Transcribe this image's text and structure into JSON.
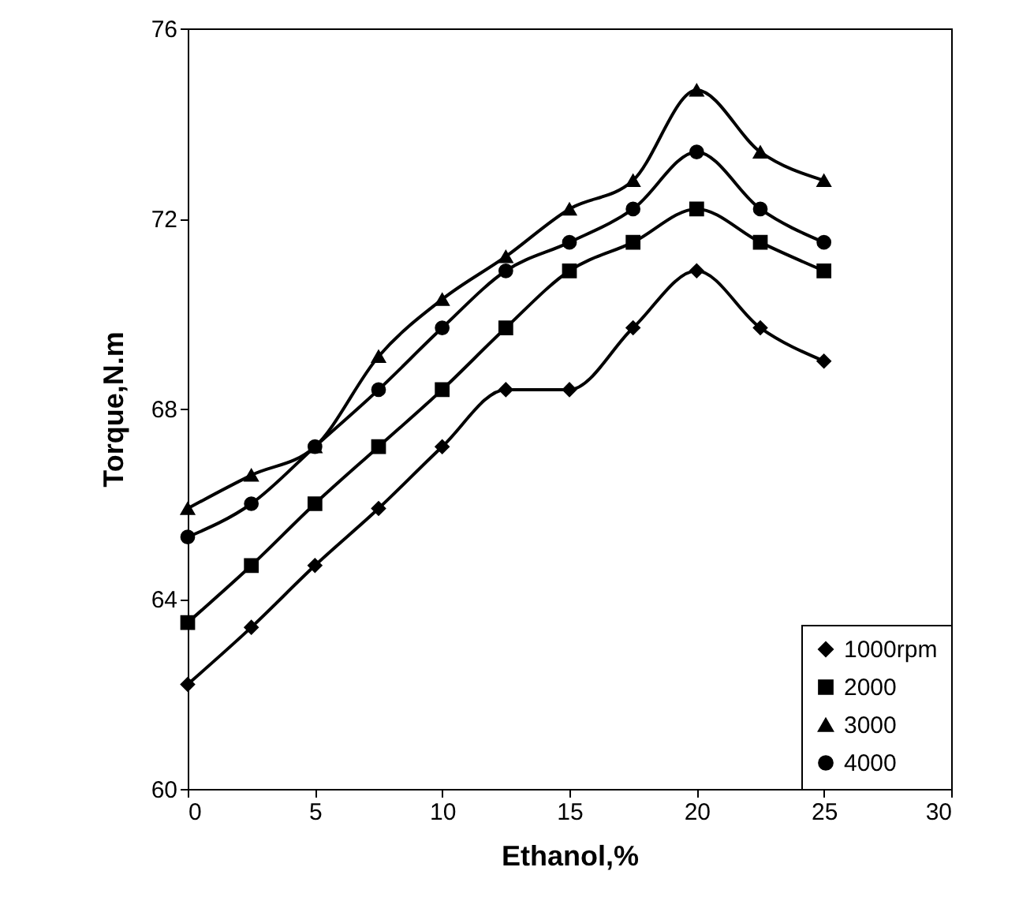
{
  "chart_data": {
    "type": "line",
    "xlabel": "Ethanol,%",
    "ylabel": "Torque,N.m",
    "x": [
      0,
      2.5,
      5,
      7.5,
      10,
      12.5,
      15,
      17.5,
      20,
      22.5,
      25
    ],
    "xlim": [
      0,
      30
    ],
    "xticks": [
      0,
      5,
      10,
      15,
      20,
      25,
      30
    ],
    "ylim": [
      60,
      76
    ],
    "yticks": [
      60,
      64,
      68,
      72,
      76
    ],
    "grid": false,
    "legend": "bottom right",
    "line_style": "solid",
    "series": [
      {
        "name": "1000rpm",
        "color": "#000000",
        "marker": "diamond",
        "values": [
          62.2,
          63.4,
          64.7,
          65.9,
          67.2,
          68.4,
          68.4,
          69.7,
          70.9,
          69.7,
          69.0
        ]
      },
      {
        "name": "2000",
        "color": "#000000",
        "marker": "square",
        "values": [
          63.5,
          64.7,
          66.0,
          67.2,
          68.4,
          69.7,
          70.9,
          71.5,
          72.2,
          71.5,
          70.9
        ]
      },
      {
        "name": "3000",
        "color": "#000000",
        "marker": "triangle",
        "values": [
          65.9,
          66.6,
          67.2,
          69.1,
          70.3,
          71.2,
          72.2,
          72.8,
          74.7,
          73.4,
          72.8
        ]
      },
      {
        "name": "4000",
        "color": "#000000",
        "marker": "circle",
        "values": [
          65.3,
          66.0,
          67.2,
          68.4,
          69.7,
          70.9,
          71.5,
          72.2,
          73.4,
          72.2,
          71.5
        ]
      }
    ]
  }
}
